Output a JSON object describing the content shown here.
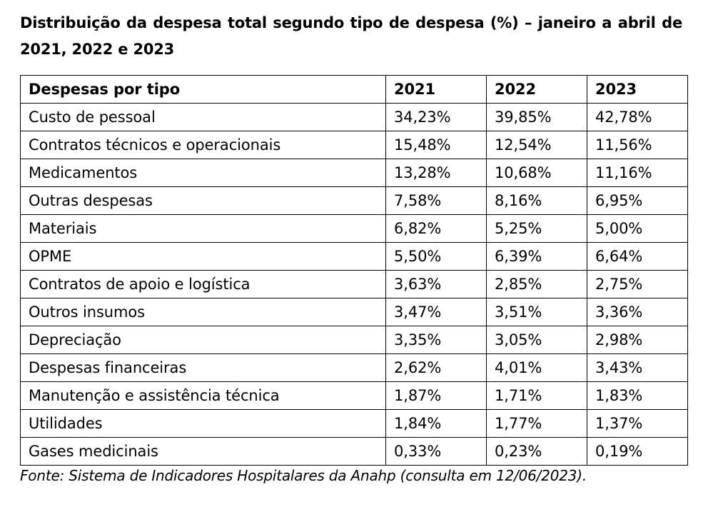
{
  "title": "Distribuição da despesa total segundo tipo de despesa (%) – janeiro a abril de 2021, 2022 e 2023",
  "table": {
    "headers": [
      "Despesas por tipo",
      "2021",
      "2022",
      "2023"
    ],
    "rows": [
      [
        "Custo de pessoal",
        "34,23%",
        "39,85%",
        "42,78%"
      ],
      [
        "Contratos técnicos e operacionais",
        "15,48%",
        "12,54%",
        "11,56%"
      ],
      [
        "Medicamentos",
        "13,28%",
        "10,68%",
        "11,16%"
      ],
      [
        "Outras despesas",
        "7,58%",
        "8,16%",
        "6,95%"
      ],
      [
        "Materiais",
        "6,82%",
        "5,25%",
        "5,00%"
      ],
      [
        "OPME",
        "5,50%",
        "6,39%",
        "6,64%"
      ],
      [
        "Contratos de apoio e logística",
        "3,63%",
        "2,85%",
        "2,75%"
      ],
      [
        "Outros insumos",
        "3,47%",
        "3,51%",
        "3,36%"
      ],
      [
        "Depreciação",
        "3,35%",
        "3,05%",
        "2,98%"
      ],
      [
        "Despesas financeiras",
        "2,62%",
        "4,01%",
        "3,43%"
      ],
      [
        "Manutenção e assistência técnica",
        "1,87%",
        "1,71%",
        "1,83%"
      ],
      [
        "Utilidades",
        "1,84%",
        "1,77%",
        "1,37%"
      ],
      [
        "Gases medicinais",
        "0,33%",
        "0,23%",
        "0,19%"
      ]
    ]
  },
  "source": "Fonte: Sistema de Indicadores Hospitalares da Anahp (consulta em 12/06/2023)."
}
